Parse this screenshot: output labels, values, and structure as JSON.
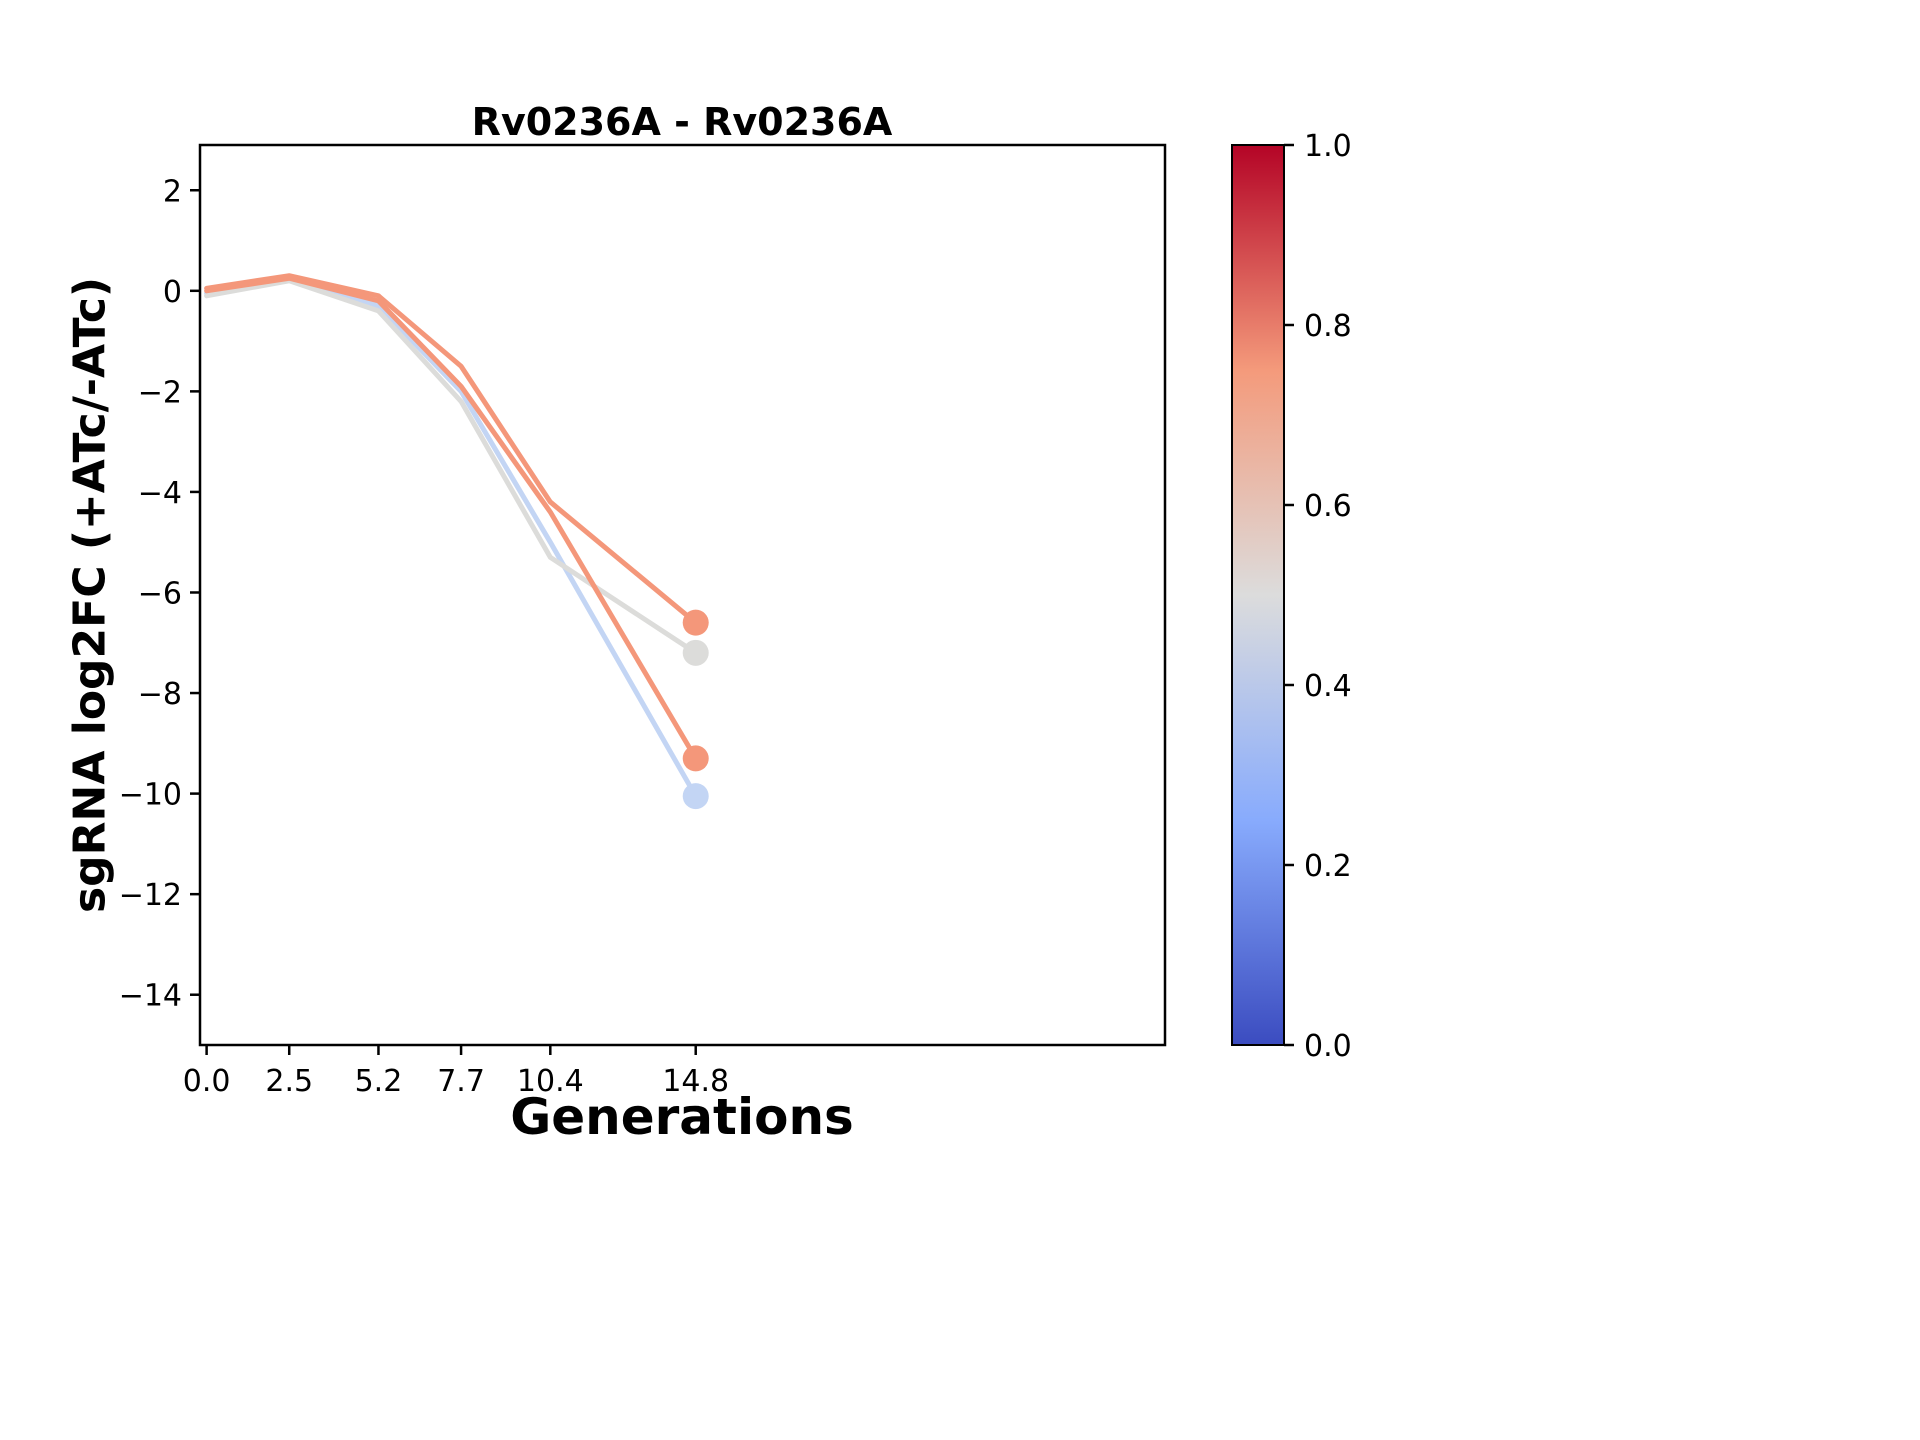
{
  "title": "Rv0236A - Rv0236A",
  "chart_data": {
    "type": "line",
    "title": "Rv0236A - Rv0236A",
    "xlabel": "Generations",
    "ylabel": "sgRNA log2FC (+ATc/-ATc)",
    "x": [
      0.0,
      2.5,
      5.2,
      7.7,
      10.4,
      14.8
    ],
    "xlim": [
      -0.2,
      29.0
    ],
    "ylim": [
      -15.0,
      2.9
    ],
    "xticks": [
      0.0,
      2.5,
      5.2,
      7.7,
      10.4,
      14.8
    ],
    "xtick_labels": [
      "0.0",
      "2.5",
      "5.2",
      "7.7",
      "10.4",
      "14.8"
    ],
    "yticks": [
      2,
      0,
      -2,
      -4,
      -6,
      -8,
      -10,
      -12,
      -14
    ],
    "ytick_labels": [
      "2",
      "0",
      "−2",
      "−4",
      "−6",
      "−8",
      "−10",
      "−12",
      "−14"
    ],
    "grid": false,
    "legend": "none",
    "series": [
      {
        "colormap_value": 0.42,
        "color": "#c3d5f4",
        "values": [
          -0.05,
          0.25,
          -0.3,
          -2.0,
          -5.0,
          -10.05
        ],
        "end_marker": true
      },
      {
        "colormap_value": 0.53,
        "color": "#dcdcda",
        "values": [
          -0.1,
          0.2,
          -0.4,
          -2.2,
          -5.3,
          -7.2
        ],
        "end_marker": true
      },
      {
        "colormap_value": 0.76,
        "color": "#f4977a",
        "values": [
          0.0,
          0.25,
          -0.2,
          -1.9,
          -4.4,
          -9.3
        ],
        "end_marker": true
      },
      {
        "colormap_value": 0.76,
        "color": "#f4977a",
        "values": [
          0.05,
          0.3,
          -0.1,
          -1.5,
          -4.2,
          -6.6
        ],
        "end_marker": true
      }
    ],
    "colorbar": {
      "min": 0.0,
      "max": 1.0,
      "tick_labels": [
        "0.0",
        "0.2",
        "0.4",
        "0.6",
        "0.8",
        "1.0"
      ],
      "colormap": "coolwarm",
      "gradient_stops": [
        "#3b4cc0",
        "#88abfd",
        "#dcdcdc",
        "#f49a7b",
        "#b40426"
      ]
    }
  },
  "layout_colors": {
    "axis": "#000000",
    "background": "#ffffff"
  }
}
